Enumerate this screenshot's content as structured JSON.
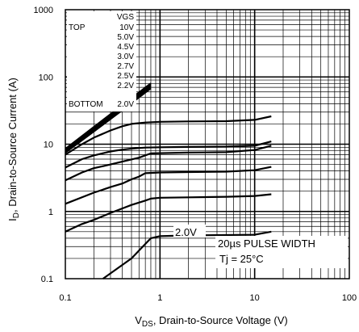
{
  "chart_data": {
    "type": "line",
    "xlabel": {
      "main": "V",
      "sub": "DS",
      "rest": ", Drain-to-Source Voltage (V)"
    },
    "ylabel": {
      "main": "I",
      "sub": "D",
      "rest": ", Drain-to-Source Current (A)"
    },
    "x_scale": "log",
    "y_scale": "log",
    "xlim": [
      0.1,
      100
    ],
    "ylim": [
      0.1,
      1000
    ],
    "x_ticks": [
      "0.1",
      "1",
      "10",
      "100"
    ],
    "y_ticks": [
      "0.1",
      "1",
      "10",
      "100",
      "1000"
    ],
    "grid": true,
    "legend": {
      "header": "VGS",
      "top_label": "TOP",
      "bottom_label": "BOTTOM",
      "entries": [
        "10V",
        "5.0V",
        "4.5V",
        "3.0V",
        "2.7V",
        "2.5V",
        "2.2V",
        "2.0V"
      ]
    },
    "annotations": {
      "curve_label": "2.0V",
      "pulse": "20µs PULSE WIDTH",
      "temp": "Tj = 25°C"
    },
    "series": [
      {
        "x": [
          0.1,
          0.2,
          0.4,
          0.8
        ],
        "y": [
          8.5,
          18,
          38,
          80
        ]
      },
      {
        "x": [
          0.1,
          0.2,
          0.4,
          0.8
        ],
        "y": [
          8,
          17,
          36,
          76
        ]
      },
      {
        "x": [
          0.1,
          0.2,
          0.4,
          0.8
        ],
        "y": [
          7.8,
          16,
          34,
          72
        ]
      },
      {
        "x": [
          0.1,
          0.2,
          0.4,
          0.8
        ],
        "y": [
          7.5,
          15.5,
          32,
          68
        ]
      },
      {
        "x": [
          0.1,
          0.15,
          0.2,
          0.3,
          0.4,
          0.5,
          0.7,
          1,
          2,
          5,
          10,
          15
        ],
        "y": [
          7,
          10,
          12.5,
          16,
          18.5,
          20,
          21,
          21.5,
          21.8,
          22,
          23,
          26
        ]
      },
      {
        "x": [
          0.1,
          0.15,
          0.2,
          0.3,
          0.4,
          0.5,
          0.7,
          1,
          2,
          5,
          10,
          15
        ],
        "y": [
          4.5,
          6,
          6.8,
          7.8,
          8.3,
          8.6,
          8.9,
          9,
          9.1,
          9.2,
          9.5,
          11
        ]
      },
      {
        "x": [
          0.1,
          0.15,
          0.2,
          0.3,
          0.4,
          0.6,
          0.8,
          2,
          5,
          10,
          15
        ],
        "y": [
          2.9,
          3.8,
          4.4,
          5,
          5.5,
          6.3,
          7.3,
          7.5,
          7.6,
          8.2,
          9.5
        ]
      },
      {
        "x": [
          0.1,
          0.2,
          0.3,
          0.4,
          0.5,
          0.6,
          0.7,
          1,
          2,
          5,
          10,
          15
        ],
        "y": [
          1.3,
          1.9,
          2.3,
          2.6,
          3,
          3.3,
          3.7,
          3.8,
          3.85,
          3.9,
          4.1,
          4.6
        ]
      },
      {
        "x": [
          0.1,
          0.15,
          0.2,
          0.3,
          0.5,
          0.7,
          0.8,
          1,
          2,
          5,
          10,
          15
        ],
        "y": [
          0.5,
          0.65,
          0.75,
          0.95,
          1.25,
          1.45,
          1.55,
          1.6,
          1.62,
          1.65,
          1.7,
          1.8
        ]
      },
      {
        "x": [
          0.25,
          0.5,
          0.8,
          1,
          2,
          10,
          15
        ],
        "y": [
          0.1,
          0.2,
          0.4,
          0.43,
          0.44,
          0.45,
          0.5
        ]
      }
    ]
  }
}
